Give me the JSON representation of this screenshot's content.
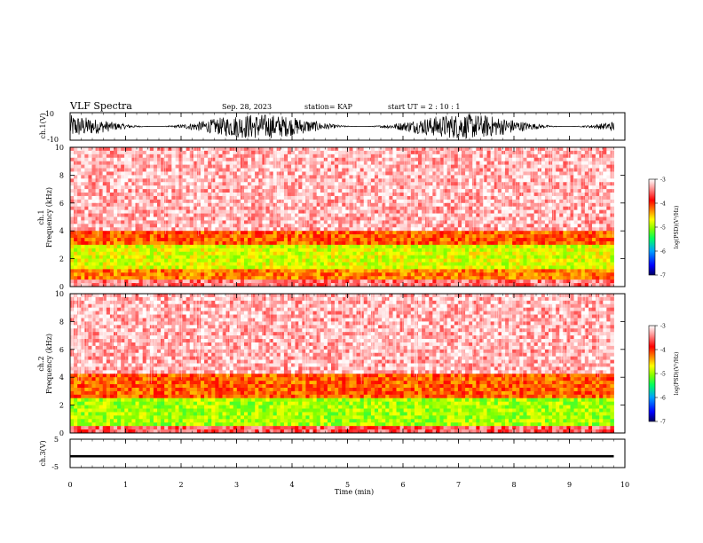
{
  "header": {
    "title": "VLF Spectra",
    "date": "Sep. 28, 2023",
    "station": "station= KAP",
    "start": "start  UT =   2 : 10 : 1"
  },
  "chart_data": [
    {
      "type": "line",
      "panel": "ch1-waveform",
      "ylabel": "ch.1(V)",
      "ylim": [
        -10,
        10
      ],
      "yticks": [
        "10",
        "-10"
      ],
      "xlim": [
        0,
        10
      ],
      "description_values": "dense noise trace, amplitude roughly -10 to 10 V over 0-9.8 min"
    },
    {
      "type": "heatmap",
      "panel": "ch1-spectrogram",
      "ylabel": "ch.1\nFrequency  (kHz)",
      "ylim": [
        0,
        10
      ],
      "yticks": [
        "0",
        "2",
        "4",
        "6",
        "8",
        "10"
      ],
      "xlim": [
        0,
        10
      ],
      "data_extent_min": 9.8,
      "bands": [
        {
          "fmin": 0,
          "fmax": 0.6,
          "level": -3.5
        },
        {
          "fmin": 0.6,
          "fmax": 1.2,
          "level": -4.3
        },
        {
          "fmin": 1.2,
          "fmax": 3.0,
          "level": -4.9
        },
        {
          "fmin": 3.0,
          "fmax": 4.0,
          "level": -4.2
        },
        {
          "fmin": 4.0,
          "fmax": 10.0,
          "level": -3.3
        }
      ]
    },
    {
      "type": "heatmap",
      "panel": "ch2-spectrogram",
      "ylabel": "ch.2\nFrequency  (kHz)",
      "ylim": [
        0,
        10
      ],
      "yticks": [
        "0",
        "2",
        "4",
        "6",
        "8",
        "10"
      ],
      "xlim": [
        0,
        10
      ],
      "data_extent_min": 9.8,
      "bands": [
        {
          "fmin": 0,
          "fmax": 0.6,
          "level": -3.6
        },
        {
          "fmin": 0.6,
          "fmax": 2.5,
          "level": -5.1
        },
        {
          "fmin": 2.5,
          "fmax": 4.2,
          "level": -4.2
        },
        {
          "fmin": 4.2,
          "fmax": 10.0,
          "level": -3.3
        }
      ]
    },
    {
      "type": "line",
      "panel": "ch3-waveform",
      "ylabel": "ch.3(V)",
      "ylim": [
        -5,
        5
      ],
      "yticks": [
        "5",
        "0",
        "-5"
      ],
      "xlim": [
        0,
        10
      ],
      "center_value": -1,
      "amplitude": 0.4
    }
  ],
  "xaxis": {
    "label": "Time  (min)",
    "ticks": [
      "0",
      "1",
      "2",
      "3",
      "4",
      "5",
      "6",
      "7",
      "8",
      "9",
      "10"
    ]
  },
  "colorbar": {
    "label": "log(PSD)(V²/Hz)",
    "range": [
      -7,
      -3
    ],
    "ticks": [
      "-3",
      "-4",
      "-5",
      "-6",
      "-7"
    ],
    "stops": [
      "#000060",
      "#0000ff",
      "#00a0ff",
      "#00ff60",
      "#80ff00",
      "#ffff00",
      "#ff8000",
      "#ff0000",
      "#ff9090",
      "#ffffff"
    ]
  }
}
